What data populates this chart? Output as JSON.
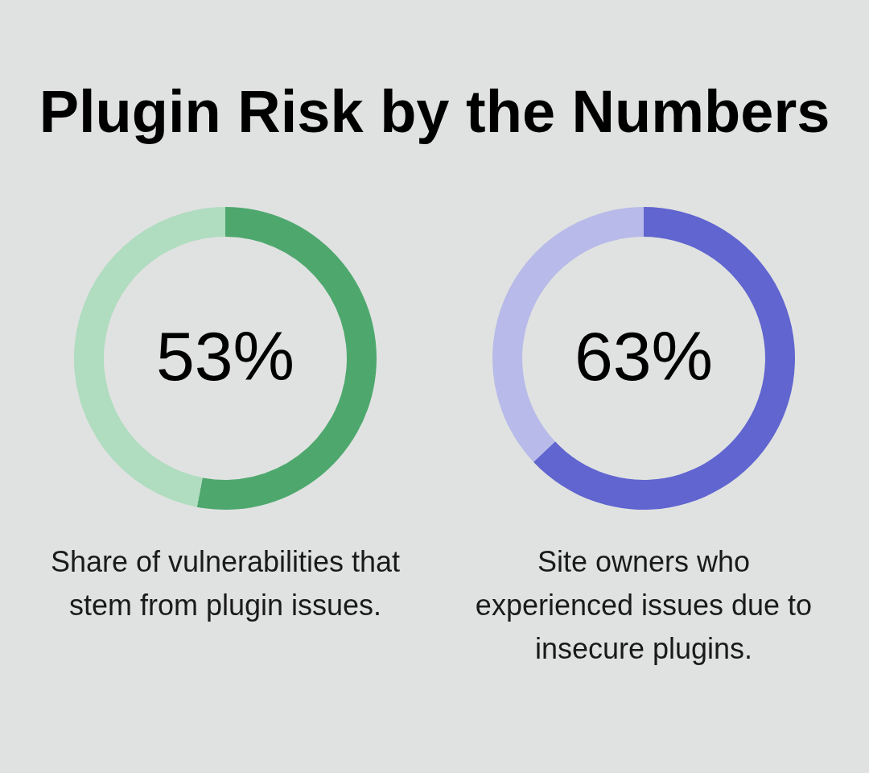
{
  "chart_data": [
    {
      "type": "donut",
      "title": "Plugin Risk by the Numbers",
      "categories": [
        null,
        null
      ],
      "values": [
        53,
        47
      ],
      "colors": [
        "#4ea86e",
        "#b0dcc0"
      ],
      "value_labels": [
        "53%",
        null
      ],
      "annotations": [
        "Share of vulnerabilities that stem from plugin issues."
      ]
    },
    {
      "type": "donut",
      "categories": [
        null,
        null
      ],
      "values": [
        63,
        37
      ],
      "colors": [
        "#6065cf",
        "#b8bae9"
      ],
      "value_labels": [
        "63%",
        null
      ],
      "annotations": [
        "Site owners who experienced issues due to insecure plugins."
      ]
    }
  ]
}
